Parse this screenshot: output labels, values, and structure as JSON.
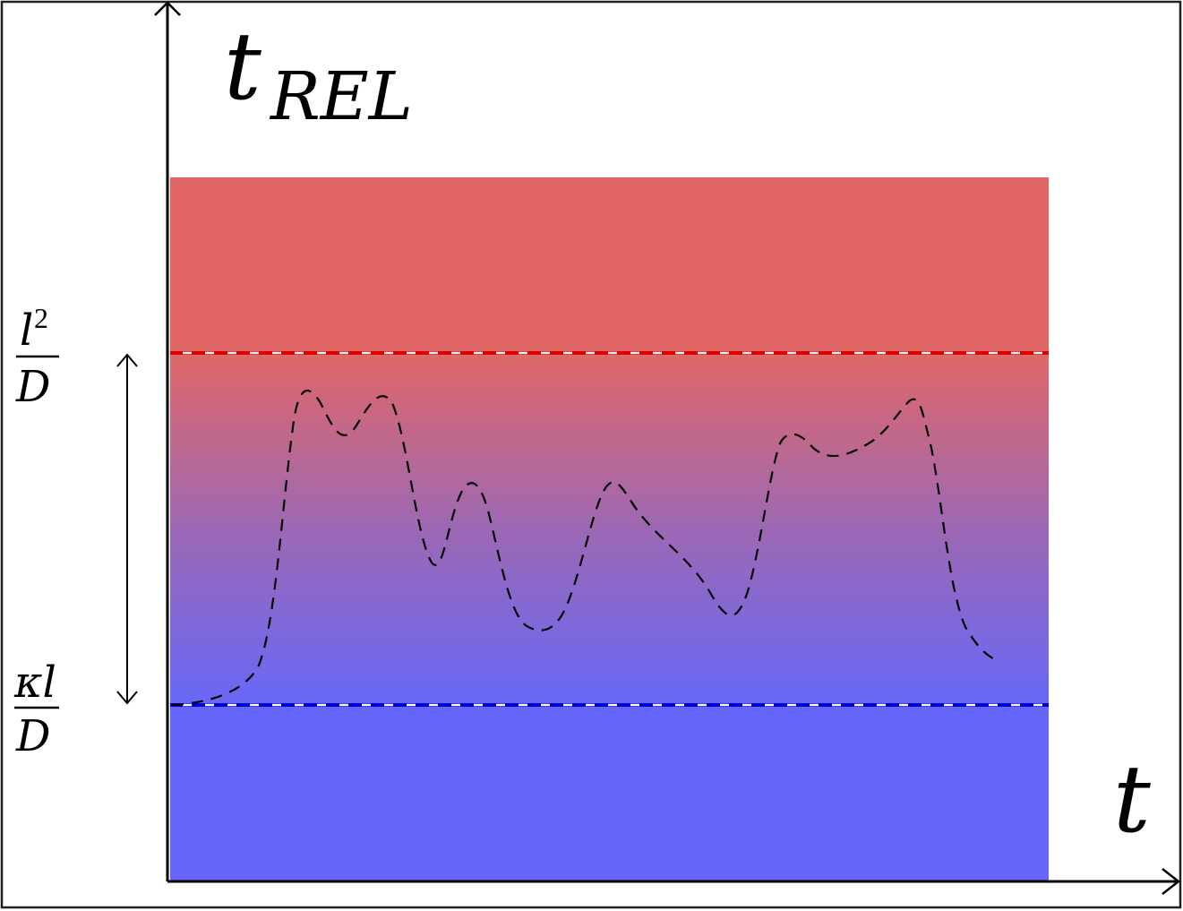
{
  "axes": {
    "y_label_main": "t",
    "y_label_sub": "REL",
    "x_label": "t"
  },
  "levels": {
    "upper": {
      "numerator_base": "l",
      "numerator_exp": "2",
      "denominator": "D",
      "line_color": "#dd0000"
    },
    "lower": {
      "numerator": "κl",
      "denominator": "D",
      "line_color": "#0000dd"
    }
  },
  "regions": {
    "upper_color": "#e06666",
    "lower_color": "#6666fd"
  }
}
